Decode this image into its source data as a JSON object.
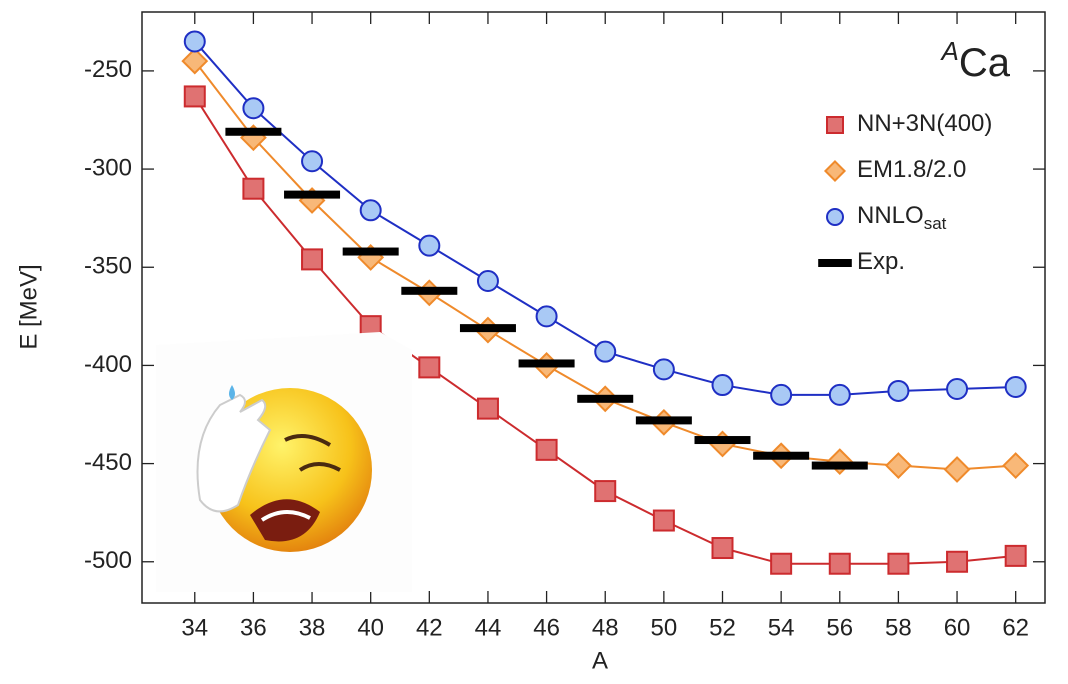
{
  "chart_data": {
    "type": "line",
    "annotation": {
      "superscript": "A",
      "text": "Ca"
    },
    "x_label": "A",
    "y_label": "E [MeV]",
    "x": [
      34,
      36,
      38,
      40,
      42,
      44,
      46,
      48,
      50,
      52,
      54,
      56,
      58,
      60,
      62
    ],
    "series": [
      {
        "name": "NN+3N(400)",
        "marker": "square",
        "color": "#cc2b2e",
        "fill": "#e07272",
        "values": [
          -263,
          -310,
          -346,
          -380,
          -401,
          -422,
          -443,
          -464,
          -479,
          -493,
          -501,
          -501,
          -501,
          -500,
          -497
        ]
      },
      {
        "name": "EM1.8/2.0",
        "marker": "diamond",
        "color": "#ef8a2b",
        "fill": "#f8b878",
        "values": [
          -245,
          -284,
          -316,
          -345,
          -363,
          -382,
          -400,
          -417,
          -429,
          -440,
          -446,
          -449,
          -451,
          -453,
          -451
        ]
      },
      {
        "name": "NNLO",
        "name_sub": "sat",
        "marker": "circle",
        "color": "#1f2fc4",
        "fill": "#a9c9f5",
        "values": [
          -235,
          -269,
          -296,
          -321,
          -339,
          -357,
          -375,
          -393,
          -402,
          -410,
          -415,
          -415,
          -413,
          -412,
          -411
        ]
      },
      {
        "name": "Exp.",
        "marker": "dash",
        "color": "#000000",
        "values": [
          null,
          -281,
          -313,
          -342,
          -362,
          -381,
          -399,
          -417,
          -428,
          -438,
          -446,
          -451,
          null,
          null,
          null
        ]
      }
    ],
    "xlim": [
      32.2,
      63
    ],
    "ylim": [
      -521,
      -220
    ],
    "xticks": [
      34,
      36,
      38,
      40,
      42,
      44,
      46,
      48,
      50,
      52,
      54,
      56,
      58,
      60,
      62
    ],
    "yticks": [
      -500,
      -450,
      -400,
      -350,
      -300,
      -250
    ],
    "legend": "upper right"
  }
}
